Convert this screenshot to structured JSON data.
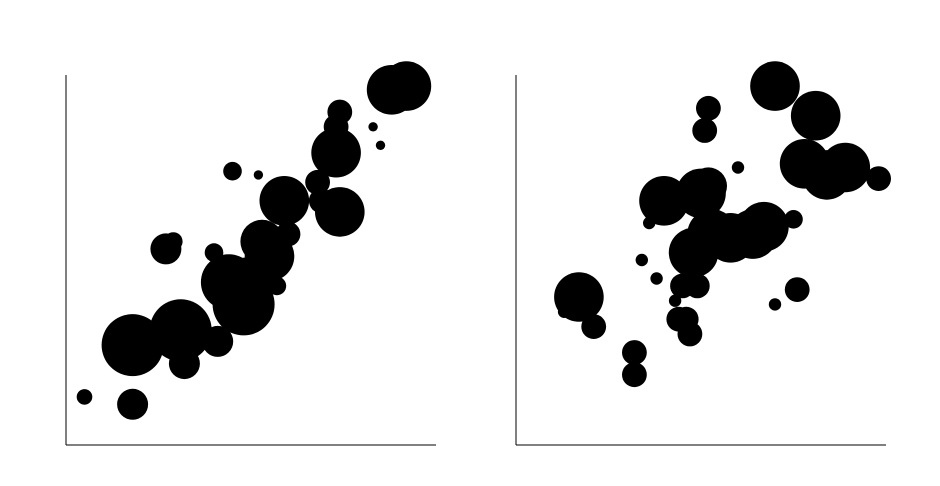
{
  "chart_data": [
    {
      "type": "scatter",
      "title": "",
      "xlabel": "",
      "ylabel": "",
      "xlim": [
        0,
        100
      ],
      "ylim": [
        0,
        100
      ],
      "grid": false,
      "legend": "none",
      "marker_color": "#000000",
      "points": [
        {
          "x": 5,
          "y": 13,
          "size": 5
        },
        {
          "x": 18,
          "y": 11,
          "size": 10
        },
        {
          "x": 18,
          "y": 27,
          "size": 20
        },
        {
          "x": 31,
          "y": 31,
          "size": 20
        },
        {
          "x": 32,
          "y": 22,
          "size": 10
        },
        {
          "x": 41,
          "y": 28,
          "size": 10
        },
        {
          "x": 27,
          "y": 53,
          "size": 10
        },
        {
          "x": 29,
          "y": 55,
          "size": 6
        },
        {
          "x": 40,
          "y": 52,
          "size": 6
        },
        {
          "x": 45,
          "y": 74,
          "size": 6
        },
        {
          "x": 52,
          "y": 73,
          "size": 3
        },
        {
          "x": 44,
          "y": 44,
          "size": 18
        },
        {
          "x": 48,
          "y": 38,
          "size": 20
        },
        {
          "x": 49,
          "y": 44,
          "size": 16
        },
        {
          "x": 53,
          "y": 45,
          "size": 12
        },
        {
          "x": 55,
          "y": 51,
          "size": 16
        },
        {
          "x": 53,
          "y": 55,
          "size": 14
        },
        {
          "x": 51,
          "y": 34,
          "size": 6
        },
        {
          "x": 57,
          "y": 43,
          "size": 6
        },
        {
          "x": 59,
          "y": 66,
          "size": 16
        },
        {
          "x": 60,
          "y": 57,
          "size": 8
        },
        {
          "x": 68,
          "y": 71,
          "size": 8
        },
        {
          "x": 69,
          "y": 66,
          "size": 8
        },
        {
          "x": 74,
          "y": 63,
          "size": 16
        },
        {
          "x": 73,
          "y": 79,
          "size": 16
        },
        {
          "x": 73,
          "y": 86,
          "size": 8
        },
        {
          "x": 74,
          "y": 90,
          "size": 8
        },
        {
          "x": 83,
          "y": 86,
          "size": 3
        },
        {
          "x": 85,
          "y": 81,
          "size": 3
        },
        {
          "x": 88,
          "y": 96,
          "size": 16
        },
        {
          "x": 92,
          "y": 97,
          "size": 16
        }
      ]
    },
    {
      "type": "scatter",
      "title": "",
      "xlabel": "",
      "ylabel": "",
      "xlim": [
        0,
        100
      ],
      "ylim": [
        0,
        100
      ],
      "grid": false,
      "legend": "none",
      "marker_color": "#000000",
      "points": [
        {
          "x": 17,
          "y": 40,
          "size": 16
        },
        {
          "x": 21,
          "y": 32,
          "size": 8
        },
        {
          "x": 13,
          "y": 36,
          "size": 4
        },
        {
          "x": 32,
          "y": 25,
          "size": 8
        },
        {
          "x": 32,
          "y": 19,
          "size": 8
        },
        {
          "x": 34,
          "y": 50,
          "size": 4
        },
        {
          "x": 36,
          "y": 60,
          "size": 4
        },
        {
          "x": 38,
          "y": 45,
          "size": 4
        },
        {
          "x": 40,
          "y": 66,
          "size": 16
        },
        {
          "x": 43,
          "y": 39,
          "size": 4
        },
        {
          "x": 44,
          "y": 34,
          "size": 8
        },
        {
          "x": 45,
          "y": 43,
          "size": 8
        },
        {
          "x": 46,
          "y": 34,
          "size": 8
        },
        {
          "x": 47,
          "y": 30,
          "size": 8
        },
        {
          "x": 48,
          "y": 52,
          "size": 16
        },
        {
          "x": 49,
          "y": 43,
          "size": 8
        },
        {
          "x": 50,
          "y": 68,
          "size": 16
        },
        {
          "x": 52,
          "y": 70,
          "size": 12
        },
        {
          "x": 52,
          "y": 91,
          "size": 8
        },
        {
          "x": 51,
          "y": 85,
          "size": 8
        },
        {
          "x": 53,
          "y": 57,
          "size": 16
        },
        {
          "x": 58,
          "y": 56,
          "size": 16
        },
        {
          "x": 60,
          "y": 75,
          "size": 4
        },
        {
          "x": 64,
          "y": 57,
          "size": 16
        },
        {
          "x": 67,
          "y": 59,
          "size": 16
        },
        {
          "x": 70,
          "y": 38,
          "size": 4
        },
        {
          "x": 70,
          "y": 97,
          "size": 16
        },
        {
          "x": 75,
          "y": 61,
          "size": 6
        },
        {
          "x": 76,
          "y": 42,
          "size": 8
        },
        {
          "x": 81,
          "y": 89,
          "size": 16
        },
        {
          "x": 78,
          "y": 76,
          "size": 16
        },
        {
          "x": 84,
          "y": 73,
          "size": 16
        },
        {
          "x": 89,
          "y": 75,
          "size": 16
        },
        {
          "x": 98,
          "y": 72,
          "size": 8
        }
      ]
    }
  ]
}
